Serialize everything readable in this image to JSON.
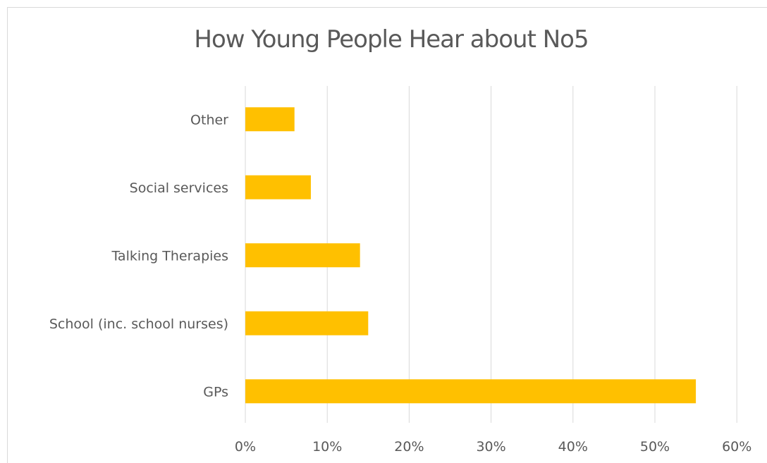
{
  "chart_data": {
    "type": "bar",
    "orientation": "horizontal",
    "title": "How Young People Hear about No5",
    "categories": [
      "GPs",
      "School (inc. school nurses)",
      "Talking Therapies",
      "Social services",
      "Other"
    ],
    "values": [
      0.55,
      0.15,
      0.14,
      0.08,
      0.06
    ],
    "xlim": [
      0,
      0.6
    ],
    "ticks": [
      0,
      0.1,
      0.2,
      0.3,
      0.4,
      0.5,
      0.6
    ],
    "tick_labels": [
      "0%",
      "10%",
      "20%",
      "30%",
      "40%",
      "50%",
      "60%"
    ],
    "grid": "vertical",
    "legend": "none",
    "bar_color": "#FFC000",
    "grid_color": "#d9d9d9"
  }
}
